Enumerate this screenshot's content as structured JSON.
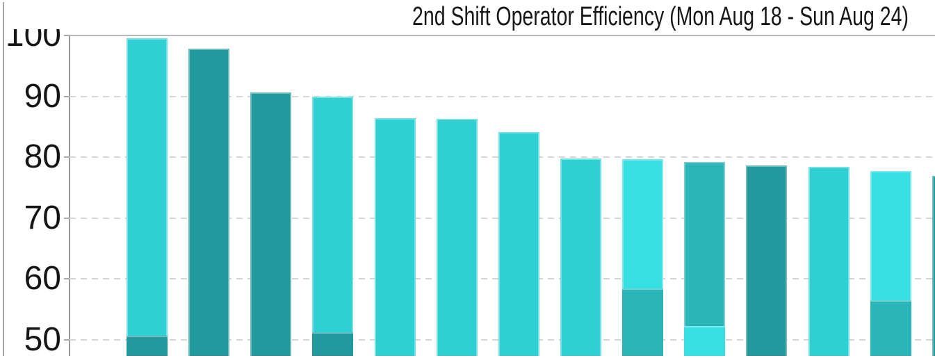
{
  "colors": {
    "cyan": "#2ed0d3",
    "bright_cyan": "#35dfe2",
    "teal": "#2ab6b9",
    "dark_teal": "#21999d"
  },
  "chart_data": {
    "type": "bar",
    "title": "2nd Shift Operator Efficiency (Mon Aug 18 - Sun Aug 24)",
    "xlabel": "",
    "ylabel": "",
    "y_ticks": [
      100,
      90,
      80,
      70,
      60,
      50
    ],
    "ylim_visible": [
      47,
      100
    ],
    "grid": "horizontal-dashed",
    "legend": "none-visible",
    "x_tick_labels": "cut-off-below-view",
    "bars": [
      {
        "value": 99.6,
        "color": "cyan",
        "overlay_value": 50.7,
        "overlay_color": "dark_teal"
      },
      {
        "value": 97.8,
        "color": "dark_teal",
        "overlay_value": null,
        "overlay_color": null
      },
      {
        "value": 90.6,
        "color": "dark_teal",
        "overlay_value": null,
        "overlay_color": null
      },
      {
        "value": 89.9,
        "color": "cyan",
        "overlay_value": 51.2,
        "overlay_color": "dark_teal"
      },
      {
        "value": 86.4,
        "color": "cyan",
        "overlay_value": null,
        "overlay_color": null
      },
      {
        "value": 86.3,
        "color": "cyan",
        "overlay_value": null,
        "overlay_color": null
      },
      {
        "value": 84.1,
        "color": "cyan",
        "overlay_value": null,
        "overlay_color": null
      },
      {
        "value": 79.8,
        "color": "cyan",
        "overlay_value": null,
        "overlay_color": null
      },
      {
        "value": 79.7,
        "color": "bright_cyan",
        "overlay_value": 58.4,
        "overlay_color": "teal"
      },
      {
        "value": 79.2,
        "color": "teal",
        "overlay_value": 52.3,
        "overlay_color": "bright_cyan"
      },
      {
        "value": 78.7,
        "color": "dark_teal",
        "overlay_value": null,
        "overlay_color": null
      },
      {
        "value": 78.4,
        "color": "cyan",
        "overlay_value": null,
        "overlay_color": null
      },
      {
        "value": 77.7,
        "color": "bright_cyan",
        "overlay_value": 56.5,
        "overlay_color": "teal"
      },
      {
        "value": 76.9,
        "color": "dark_teal",
        "overlay_value": null,
        "overlay_color": null
      }
    ]
  }
}
